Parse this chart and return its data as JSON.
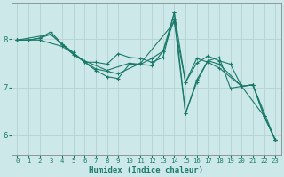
{
  "xlabel": "Humidex (Indice chaleur)",
  "xlim": [
    -0.5,
    23.5
  ],
  "ylim": [
    5.6,
    8.75
  ],
  "yticks": [
    6,
    7,
    8
  ],
  "xticks": [
    0,
    1,
    2,
    3,
    4,
    5,
    6,
    7,
    8,
    9,
    10,
    11,
    12,
    13,
    14,
    15,
    16,
    17,
    18,
    19,
    20,
    21,
    22,
    23
  ],
  "background_color": "#cde8e8",
  "line_color": "#1a7a6a",
  "grid_color": "#b8d4d4",
  "lines": [
    {
      "x": [
        0,
        1,
        2,
        3,
        4,
        5,
        6,
        7,
        8,
        9,
        10,
        11,
        12,
        13,
        14,
        15,
        16,
        17,
        18,
        19,
        20,
        21,
        22,
        23
      ],
      "y": [
        7.98,
        7.98,
        8.02,
        8.15,
        7.9,
        7.72,
        7.52,
        7.35,
        7.22,
        7.18,
        7.48,
        7.48,
        7.6,
        7.75,
        8.55,
        6.45,
        7.1,
        7.55,
        7.62,
        6.98,
        7.02,
        7.05,
        6.4,
        5.9
      ]
    },
    {
      "x": [
        0,
        1,
        2,
        3,
        4,
        5,
        6,
        7,
        8,
        9,
        10,
        11,
        12,
        13,
        14,
        15,
        16,
        17,
        18,
        19,
        20,
        21,
        22,
        23
      ],
      "y": [
        7.98,
        7.98,
        8.02,
        8.1,
        7.9,
        7.72,
        7.52,
        7.52,
        7.48,
        7.7,
        7.62,
        7.6,
        7.52,
        7.62,
        8.55,
        7.1,
        7.5,
        7.65,
        7.55,
        7.48,
        7.02,
        7.05,
        6.4,
        5.9
      ]
    },
    {
      "x": [
        0,
        2,
        4,
        6,
        8,
        10,
        12,
        13,
        14,
        15,
        16,
        17,
        18,
        20,
        22,
        23
      ],
      "y": [
        7.98,
        7.98,
        7.85,
        7.55,
        7.35,
        7.5,
        7.45,
        7.75,
        8.4,
        6.45,
        7.15,
        7.55,
        7.48,
        7.02,
        6.4,
        5.9
      ]
    },
    {
      "x": [
        0,
        3,
        5,
        7,
        9,
        11,
        14,
        15,
        16,
        17,
        18,
        20,
        21,
        23
      ],
      "y": [
        7.98,
        8.1,
        7.68,
        7.38,
        7.28,
        7.5,
        8.35,
        7.1,
        7.6,
        7.52,
        7.4,
        7.02,
        7.05,
        5.9
      ]
    }
  ]
}
